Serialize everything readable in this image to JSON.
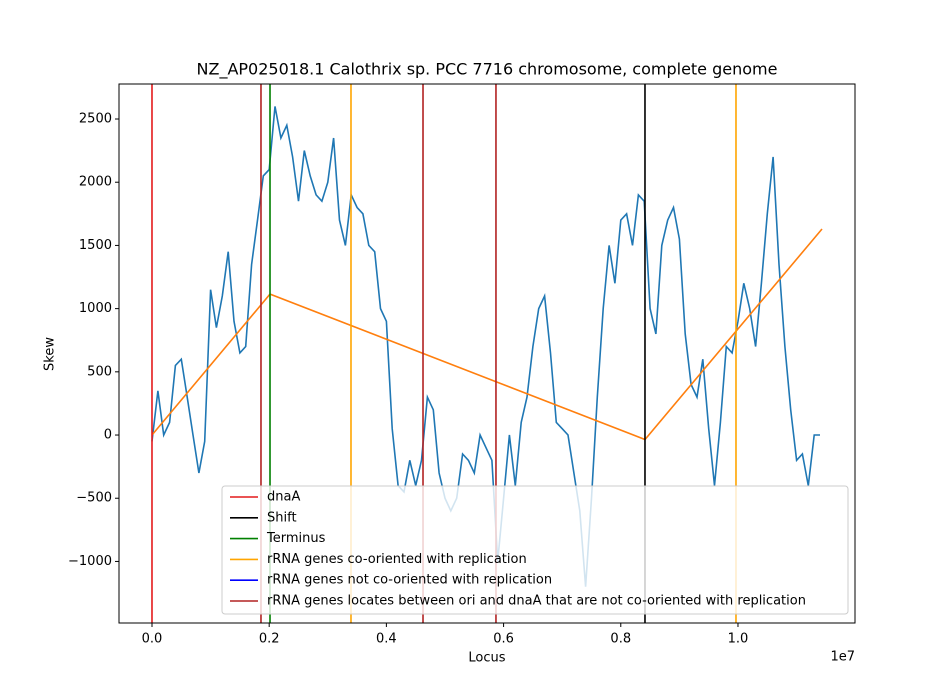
{
  "chart_data": {
    "type": "line",
    "title": "NZ_AP025018.1 Calothrix sp. PCC 7716 chromosome, complete genome",
    "x_label": "Locus",
    "y_label": "Skew",
    "x_offset_label": "1e7",
    "xlim": [
      -563000,
      11997000
    ],
    "ylim": [
      -1487,
      2777
    ],
    "xticks": [
      {
        "value": 0,
        "label": "0.0"
      },
      {
        "value": 2000000,
        "label": "0.2"
      },
      {
        "value": 4000000,
        "label": "0.4"
      },
      {
        "value": 6000000,
        "label": "0.6"
      },
      {
        "value": 8000000,
        "label": "0.8"
      },
      {
        "value": 10000000,
        "label": "1.0"
      }
    ],
    "yticks": [
      {
        "value": -1000,
        "label": "−1000"
      },
      {
        "value": -500,
        "label": "−500"
      },
      0,
      500,
      1000,
      1500,
      2000,
      2500
    ],
    "series": [
      {
        "color": "#1f77b4",
        "x": [
          0,
          100000,
          200000,
          300000,
          400000,
          500000,
          600000,
          700000,
          800000,
          900000,
          1000000,
          1100000,
          1200000,
          1300000,
          1400000,
          1500000,
          1600000,
          1700000,
          1800000,
          1900000,
          2000000,
          2100000,
          2200000,
          2300000,
          2400000,
          2500000,
          2600000,
          2700000,
          2800000,
          2900000,
          3000000,
          3100000,
          3200000,
          3300000,
          3400000,
          3500000,
          3600000,
          3700000,
          3800000,
          3900000,
          4000000,
          4100000,
          4200000,
          4300000,
          4400000,
          4500000,
          4600000,
          4700000,
          4800000,
          4900000,
          5000000,
          5100000,
          5200000,
          5300000,
          5400000,
          5500000,
          5600000,
          5700000,
          5800000,
          5900000,
          6000000,
          6100000,
          6200000,
          6300000,
          6400000,
          6500000,
          6600000,
          6700000,
          6800000,
          6900000,
          7000000,
          7100000,
          7200000,
          7300000,
          7400000,
          7500000,
          7600000,
          7700000,
          7800000,
          7900000,
          8000000,
          8100000,
          8200000,
          8300000,
          8400000,
          8500000,
          8600000,
          8700000,
          8800000,
          8900000,
          9000000,
          9100000,
          9200000,
          9300000,
          9400000,
          9500000,
          9600000,
          9700000,
          9800000,
          9900000,
          10000000,
          10100000,
          10200000,
          10300000,
          10400000,
          10500000,
          10600000,
          10700000,
          10800000,
          10900000,
          11000000,
          11100000,
          11200000,
          11300000,
          11400000
        ],
        "values": [
          -50,
          350,
          0,
          100,
          550,
          600,
          300,
          0,
          -300,
          -50,
          1150,
          850,
          1100,
          1450,
          900,
          650,
          700,
          1350,
          1700,
          2050,
          2100,
          2600,
          2350,
          2450,
          2200,
          1850,
          2250,
          2050,
          1900,
          1850,
          2000,
          2350,
          1700,
          1500,
          1900,
          1800,
          1750,
          1500,
          1450,
          1000,
          900,
          50,
          -400,
          -450,
          -200,
          -400,
          -200,
          300,
          200,
          -300,
          -500,
          -600,
          -500,
          -150,
          -200,
          -300,
          0,
          -100,
          -200,
          -1000,
          -500,
          0,
          -400,
          100,
          300,
          700,
          1000,
          1100,
          650,
          100,
          50,
          0,
          -300,
          -600,
          -1200,
          -500,
          300,
          1000,
          1500,
          1200,
          1700,
          1750,
          1500,
          1900,
          1850,
          1000,
          800,
          1500,
          1700,
          1800,
          1550,
          800,
          400,
          300,
          600,
          50,
          -400,
          100,
          700,
          650,
          900,
          1200,
          1000,
          700,
          1200,
          1750,
          2200,
          1350,
          700,
          200,
          -200,
          -150,
          -400,
          0,
          0
        ]
      },
      {
        "color": "#ff7f0e",
        "x": [
          0,
          2014000,
          8413000,
          11433000
        ],
        "values": [
          0,
          1115,
          -35,
          1630
        ]
      }
    ],
    "vlines": [
      {
        "name": "dnaA",
        "color": "#e41a1c",
        "x": [
          0
        ]
      },
      {
        "name": "Shift",
        "color": "#000000",
        "x": [
          8413000
        ]
      },
      {
        "name": "Terminus",
        "color": "#008000",
        "x": [
          2014000
        ]
      },
      {
        "name": "rRNA genes co-oriented with replication",
        "color": "#ffa500",
        "x": [
          3396000,
          9966000
        ]
      },
      {
        "name": "rRNA genes not co-oriented with replication",
        "color": "#0000ff",
        "x": []
      },
      {
        "name": "rRNA genes locates between ori and dnaA that are not co-oriented with replication",
        "color": "#b22222",
        "x": [
          1860000,
          4625000,
          5870000
        ]
      }
    ]
  }
}
